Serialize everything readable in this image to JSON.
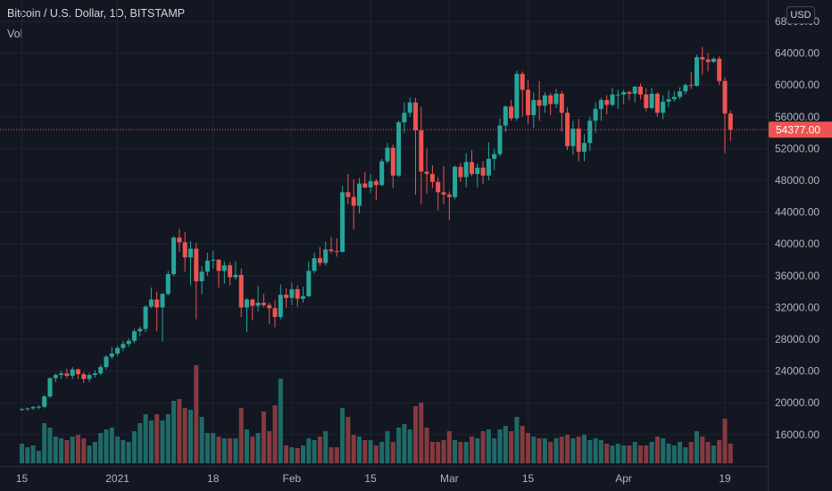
{
  "header": {
    "title": "Bitcoin / U.S. Dollar, 1D, BITSTAMP",
    "volume_label": "Vol",
    "currency_button": "USD"
  },
  "colors": {
    "background": "#131722",
    "grid": "#1f2331",
    "up": "#26a69a",
    "down": "#ef5350",
    "up_volume": "#1f6a66",
    "down_volume": "#843a3f",
    "text": "#b2b5be",
    "axis_border": "#2a2e39"
  },
  "chart_data": {
    "type": "candlestick",
    "symbol": "BTCUSD",
    "exchange": "BITSTAMP",
    "interval": "1D",
    "ylim": [
      12000,
      68000
    ],
    "y_ticks": [
      "16000.00",
      "20000.00",
      "24000.00",
      "28000.00",
      "32000.00",
      "36000.00",
      "40000.00",
      "44000.00",
      "48000.00",
      "52000.00",
      "56000.00",
      "60000.00",
      "64000.00"
    ],
    "y_tick_partial": "68000.00",
    "x_ticks": [
      {
        "label": "15",
        "day": 0
      },
      {
        "label": "2021",
        "day": 17
      },
      {
        "label": "18",
        "day": 34
      },
      {
        "label": "Feb",
        "day": 48
      },
      {
        "label": "15",
        "day": 62
      },
      {
        "label": "Mar",
        "day": 76
      },
      {
        "label": "15",
        "day": 90
      },
      {
        "label": "Apr",
        "day": 107
      },
      {
        "label": "19",
        "day": 125
      }
    ],
    "last_price": 54377,
    "last_price_label": "54377.00",
    "grid": true,
    "candles": [
      [
        19100,
        19300,
        19000,
        19200,
        22
      ],
      [
        19200,
        19400,
        19000,
        19300,
        18
      ],
      [
        19300,
        19600,
        19100,
        19450,
        20
      ],
      [
        19450,
        19700,
        19200,
        19500,
        14
      ],
      [
        19500,
        21000,
        19300,
        20800,
        45
      ],
      [
        20800,
        23200,
        20600,
        23100,
        40
      ],
      [
        23100,
        23700,
        22600,
        23500,
        30
      ],
      [
        23500,
        24000,
        23000,
        23700,
        28
      ],
      [
        23700,
        24300,
        23100,
        23400,
        26
      ],
      [
        23400,
        24500,
        23000,
        24200,
        30
      ],
      [
        24200,
        24300,
        23000,
        23600,
        32
      ],
      [
        23600,
        23900,
        22500,
        23000,
        28
      ],
      [
        23000,
        23800,
        22600,
        23500,
        20
      ],
      [
        23500,
        24100,
        23200,
        23700,
        24
      ],
      [
        23700,
        24800,
        23500,
        24500,
        34
      ],
      [
        24500,
        26000,
        24200,
        25800,
        38
      ],
      [
        25800,
        27000,
        25500,
        26200,
        40
      ],
      [
        26200,
        27200,
        25900,
        26900,
        30
      ],
      [
        26900,
        27800,
        26500,
        27400,
        26
      ],
      [
        27400,
        28100,
        27000,
        27800,
        24
      ],
      [
        27800,
        29300,
        27500,
        29000,
        36
      ],
      [
        29000,
        29600,
        28400,
        29300,
        45
      ],
      [
        29300,
        32300,
        28900,
        32100,
        55
      ],
      [
        32100,
        34500,
        31900,
        33000,
        48
      ],
      [
        33000,
        34000,
        29000,
        32000,
        55
      ],
      [
        32000,
        33800,
        27700,
        33700,
        48
      ],
      [
        33700,
        36600,
        33500,
        36200,
        55
      ],
      [
        36200,
        41000,
        35900,
        40800,
        70
      ],
      [
        40800,
        41900,
        39000,
        40200,
        72
      ],
      [
        40200,
        41500,
        36500,
        38300,
        62
      ],
      [
        38300,
        40300,
        34800,
        39400,
        60
      ],
      [
        39400,
        40100,
        30500,
        35300,
        110
      ],
      [
        35300,
        37200,
        33700,
        36500,
        52
      ],
      [
        36500,
        38900,
        36000,
        37900,
        34
      ],
      [
        37900,
        39100,
        36900,
        38000,
        34
      ],
      [
        38000,
        38100,
        34500,
        36600,
        30
      ],
      [
        36600,
        37800,
        35000,
        37300,
        28
      ],
      [
        37300,
        37700,
        34800,
        35800,
        28
      ],
      [
        35800,
        37800,
        35500,
        36100,
        28
      ],
      [
        36100,
        36900,
        30800,
        32000,
        62
      ],
      [
        32000,
        33200,
        28900,
        33000,
        38
      ],
      [
        33000,
        33100,
        30400,
        32200,
        30
      ],
      [
        32200,
        34700,
        31500,
        32600,
        34
      ],
      [
        32600,
        33700,
        32000,
        32300,
        58
      ],
      [
        32300,
        32600,
        29900,
        31900,
        36
      ],
      [
        31900,
        32900,
        29500,
        30800,
        65
      ],
      [
        30800,
        34900,
        30500,
        33600,
        95
      ],
      [
        33600,
        34400,
        32000,
        33200,
        20
      ],
      [
        33200,
        35100,
        32300,
        34300,
        18
      ],
      [
        34300,
        34800,
        32100,
        33100,
        17
      ],
      [
        33100,
        34600,
        32600,
        33400,
        20
      ],
      [
        33400,
        37800,
        33300,
        36600,
        28
      ],
      [
        36600,
        38900,
        36300,
        38200,
        26
      ],
      [
        38200,
        39600,
        37200,
        37600,
        30
      ],
      [
        37600,
        40300,
        37300,
        39300,
        36
      ],
      [
        39300,
        40900,
        38800,
        39100,
        18
      ],
      [
        39100,
        40700,
        38400,
        39000,
        18
      ],
      [
        39000,
        47300,
        38900,
        46500,
        62
      ],
      [
        46500,
        48800,
        45000,
        45900,
        52
      ],
      [
        45900,
        48100,
        41800,
        44800,
        32
      ],
      [
        44800,
        48300,
        43800,
        47600,
        30
      ],
      [
        47600,
        49000,
        47000,
        47100,
        26
      ],
      [
        47100,
        48800,
        46400,
        47900,
        26
      ],
      [
        47900,
        48200,
        45500,
        47400,
        20
      ],
      [
        47400,
        50700,
        47300,
        50400,
        24
      ],
      [
        50400,
        52700,
        50100,
        52100,
        36
      ],
      [
        52100,
        52500,
        47000,
        48600,
        24
      ],
      [
        48600,
        55500,
        48400,
        55300,
        40
      ],
      [
        55300,
        57800,
        54000,
        56500,
        44
      ],
      [
        56500,
        58400,
        56000,
        57800,
        38
      ],
      [
        57800,
        58400,
        46200,
        54300,
        64
      ],
      [
        54300,
        57200,
        45000,
        49100,
        68
      ],
      [
        49100,
        52000,
        46300,
        48800,
        40
      ],
      [
        48800,
        49900,
        47000,
        47800,
        24
      ],
      [
        47800,
        48400,
        44200,
        46500,
        24
      ],
      [
        46500,
        49800,
        45000,
        46200,
        26
      ],
      [
        46200,
        46600,
        43000,
        45900,
        36
      ],
      [
        45900,
        49900,
        45600,
        49700,
        26
      ],
      [
        49700,
        50200,
        47800,
        48400,
        24
      ],
      [
        48400,
        51400,
        47100,
        50300,
        24
      ],
      [
        50300,
        51800,
        48500,
        48800,
        30
      ],
      [
        48800,
        50100,
        47100,
        49600,
        28
      ],
      [
        49600,
        50400,
        47500,
        48600,
        36
      ],
      [
        48600,
        52800,
        48000,
        50700,
        38
      ],
      [
        50700,
        51900,
        49300,
        51300,
        28
      ],
      [
        51300,
        55800,
        51000,
        54900,
        38
      ],
      [
        54900,
        57400,
        54100,
        57300,
        42
      ],
      [
        57300,
        58100,
        55500,
        55800,
        36
      ],
      [
        55800,
        61800,
        55500,
        61400,
        52
      ],
      [
        61400,
        61700,
        56000,
        59400,
        42
      ],
      [
        59400,
        60600,
        55100,
        56200,
        34
      ],
      [
        56200,
        59100,
        54600,
        58100,
        30
      ],
      [
        58100,
        60500,
        55500,
        57400,
        28
      ],
      [
        57400,
        59100,
        56500,
        58700,
        28
      ],
      [
        58700,
        59000,
        56200,
        57600,
        24
      ],
      [
        57600,
        59500,
        57100,
        58900,
        28
      ],
      [
        58900,
        59200,
        54100,
        56500,
        30
      ],
      [
        56500,
        57200,
        51800,
        52300,
        32
      ],
      [
        52300,
        55500,
        51200,
        54500,
        28
      ],
      [
        54500,
        55700,
        50400,
        51600,
        30
      ],
      [
        51600,
        53800,
        50400,
        52700,
        32
      ],
      [
        52700,
        56000,
        51700,
        55500,
        26
      ],
      [
        55500,
        57800,
        54000,
        57000,
        28
      ],
      [
        57000,
        58400,
        55500,
        58100,
        26
      ],
      [
        58100,
        58700,
        56300,
        57500,
        22
      ],
      [
        57500,
        59600,
        57300,
        58800,
        20
      ],
      [
        58800,
        59400,
        57000,
        58800,
        22
      ],
      [
        58800,
        59400,
        57600,
        59100,
        20
      ],
      [
        59100,
        59300,
        58100,
        58900,
        20
      ],
      [
        58900,
        59800,
        57800,
        59800,
        24
      ],
      [
        59800,
        60200,
        58200,
        58800,
        20
      ],
      [
        58800,
        59600,
        56700,
        57100,
        20
      ],
      [
        57100,
        59600,
        56900,
        58900,
        24
      ],
      [
        58900,
        59100,
        56000,
        56500,
        30
      ],
      [
        56500,
        58700,
        55700,
        57900,
        28
      ],
      [
        57900,
        59300,
        57200,
        58200,
        22
      ],
      [
        58200,
        59200,
        57900,
        58500,
        20
      ],
      [
        58500,
        59700,
        58200,
        59200,
        24
      ],
      [
        59200,
        60200,
        58800,
        60000,
        18
      ],
      [
        60000,
        61600,
        59500,
        59900,
        24
      ],
      [
        59900,
        63800,
        59800,
        63500,
        36
      ],
      [
        63500,
        64800,
        61300,
        63200,
        30
      ],
      [
        63200,
        64000,
        61700,
        62900,
        24
      ],
      [
        62900,
        63500,
        62800,
        63300,
        20
      ],
      [
        63300,
        63600,
        60000,
        60500,
        26
      ],
      [
        60500,
        61000,
        51400,
        56400,
        50
      ],
      [
        56400,
        56800,
        53000,
        54377,
        22
      ]
    ]
  }
}
